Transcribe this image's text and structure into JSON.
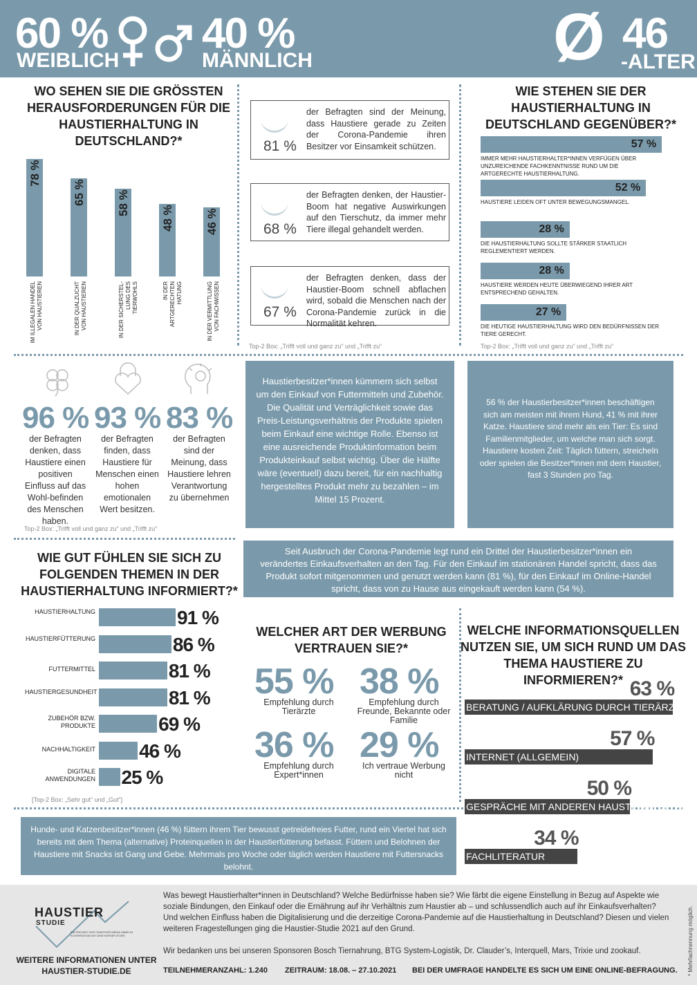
{
  "header": {
    "female_pct": "60 %",
    "female_label": "WEIBLICH",
    "male_pct": "40 %",
    "male_label": "MÄNNLICH",
    "avg_symbol": "Ø",
    "avg_value": "46",
    "avg_label": "-ALTER"
  },
  "challenges": {
    "title": "WO SEHEN SIE DIE GRÖSSTEN HERAUSFORDERUNGEN FÜR DIE HAUSTIERHALTUNG IN DEUTSCHLAND?*"
  },
  "corona_stats": {
    "items": [
      {
        "pct": "81 %",
        "text": "der Befragten sind der Meinung, dass Haustiere gerade zu Zeiten der Corona-Pandemie ihren Besitzer vor Einsamkeit schützen."
      },
      {
        "pct": "68 %",
        "text": "der Befragten denken, der Haustier-Boom hat negative Auswirkungen auf den Tierschutz, da immer mehr Tiere illegal gehandelt werden."
      },
      {
        "pct": "67 %",
        "text": "der Befragten denken, dass der Haustier-Boom schnell abflachen wird, sobald die Menschen nach der Corona-Pandemie zurück in die Normalität kehren."
      }
    ],
    "note": "Top-2 Box: „Trifft voll und ganz zu“ und „Trifft zu“"
  },
  "attitude": {
    "title": "WIE STEHEN SIE DER HAUSTIERHALTUNG IN DEUTSCHLAND GEGENÜBER?*",
    "note": "Top-2 Box: „Trifft voll und ganz zu“ und „Trifft zu“"
  },
  "kpis": {
    "items": [
      {
        "pct": "96 %",
        "text": "der Befragten denken, dass Haustiere einen positiven Einfluss auf das Wohl-befinden des Menschen haben."
      },
      {
        "pct": "93 %",
        "text": "der Befragten finden, dass Haustiere für Menschen einen hohen emotionalen Wert besitzen."
      },
      {
        "pct": "83 %",
        "text": "der Befragten sind der Meinung, dass Haustiere lehren Verantwortung zu übernehmen"
      }
    ],
    "note": "Top-2 Box: „Trifft voll und ganz zu“ und „Trifft zu“"
  },
  "texts": {
    "purchase": "Haustierbesitzer*innen kümmern sich selbst um den Einkauf von Futtermitteln und Zubehör. Die Qualität und Verträglichkeit sowie das Preis-Leistungsverhältnis der Produkte spielen beim Einkauf eine wichtige Rolle. Ebenso ist eine ausreichende Produktinformation beim Produkteinkauf selbst wichtig. Über die Hälfte wäre (eventuell) dazu bereit, für ein nachhaltig hergestelltes Produkt mehr zu bezahlen – im Mittel 15 Prozent.",
    "pets": "56 % der Haustierbesitzer*innen beschäftigen sich am meisten mit ihrem Hund, 41 % mit ihrer Katze. Haustiere sind mehr als ein Tier: Es sind Familienmitglieder, um welche man sich sorgt. Haustiere kosten Zeit: Täglich füttern, streicheln oder spielen die Besitzer*innen mit dem Haustier, fast 3 Stunden pro Tag.",
    "corona_buy": "Seit Ausbruch der Corona-Pandemie legt rund ein Drittel der Haustierbesitzer*innen ein verändertes Einkaufsverhalten an den Tag. Für den Einkauf im stationären Handel spricht, dass das Produkt sofort mitgenommen und genutzt werden kann (81 %), für den Einkauf im Online-Handel spricht, dass von zu Hause aus eingekauft werden kann (54 %).",
    "feeding": "Hunde- und Katzenbesitzer*innen (46 %) füttern ihrem Tier bewusst getreidefreies Futter, rund ein Viertel hat sich bereits mit dem Thema (alternative) Proteinquellen in der Haustierfütterung befasst. Füttern und Belohnen der Haustiere mit Snacks ist Gang und Gebe. Mehrmals pro Woche oder täglich werden Haustiere mit Futtersnacks belohnt."
  },
  "informed": {
    "title": "WIE GUT FÜHLEN SIE SICH ZU FOLGENDEN THEMEN IN DER HAUSTIERHALTUNG INFORMIERT?*",
    "note": "[Top-2 Box: „Sehr gut“ und „Gut“]"
  },
  "advertising": {
    "title": "WELCHER ART DER WERBUNG VERTRAUEN SIE?*",
    "items": [
      {
        "pct": "55 %",
        "text": "Empfehlung durch Tierärzte"
      },
      {
        "pct": "38 %",
        "text": "Empfehlung durch Freunde, Bekannte oder Familie"
      },
      {
        "pct": "36 %",
        "text": "Empfehlung durch Expert*innen"
      },
      {
        "pct": "29 %",
        "text": "Ich vertraue Werbung nicht"
      }
    ]
  },
  "sources": {
    "title": "WELCHE INFORMATIONSQUELLEN NUTZEN SIE, UM SICH RUND UM DAS THEMA HAUSTIERE ZU INFORMIEREN?*"
  },
  "footer": {
    "logo_line1": "HAUSTIER",
    "logo_line2": "STUDIE",
    "logo_small": "EIN PROJEKT DER TAKEOVER MEDIA GMBH IN KOOPERATION MIT DEM HORSEFUTURE.",
    "more_info": "WEITERE INFORMATIONEN UNTER",
    "website": "HAUSTIER-STUDIE.DE",
    "about": "Was bewegt Haustierhalter*innen in Deutschland? Welche Bedürfnisse haben sie? Wie färbt die eigene Einstellung in Bezug auf Aspekte wie soziale Bindungen, den Einkauf oder die Ernährung auf ihr Verhältnis zum Haustier ab – und schlussendlich auch auf ihr Einkaufsverhalten? Und welchen Einfluss haben die Digitalisierung und die derzeitige Corona-Pandemie auf die Haustierhaltung in Deutschland? Diesen und vielen weiteren Fragestellungen ging die Haustier-Studie 2021 auf den Grund.",
    "sponsors": "Wir bedanken uns bei unseren Sponsoren Bosch Tiernahrung, BTG System-Logistik, Dr. Clauder’s, Interquell, Mars, Trixie und zookauf.",
    "participants": "TEILNEHMERANZAHL: 1.240",
    "period": "ZEITRAUM: 18.08. – 27.10.2021",
    "online": "BEI DER UMFRAGE HANDELTE ES SICH UM EINE ONLINE-BEFRAGUNG.",
    "multi": "* Mehrfachnennung möglich."
  },
  "chart_data": [
    {
      "type": "bar",
      "title": "WO SEHEN SIE DIE GRÖSSTEN HERAUSFORDERUNGEN FÜR DIE HAUSTIERHALTUNG IN DEUTSCHLAND?*",
      "categories": [
        "IM ILLEGALEN HANDEL VON HAUSTIEREN",
        "IN DER QUALZUCHT VON HAUSTIEREN",
        "IN DER SICHERSTEL-LUNG DES TIERWOHLS",
        "IN DER ARTGERECHTEN HATUNG",
        "IN DER VERMITTLUNG VON FACHWISSEN"
      ],
      "values": [
        78,
        65,
        58,
        48,
        46
      ],
      "labels": [
        "78 %",
        "65 %",
        "58 %",
        "48 %",
        "46 %"
      ],
      "ylim": [
        0,
        100
      ]
    },
    {
      "type": "bar",
      "title": "WIE STEHEN SIE DER HAUSTIERHALTUNG IN DEUTSCHLAND GEGENÜBER?*",
      "categories": [
        "IMMER MEHR HAUSTIERHALTER*INNEN VERFÜGEN ÜBER UNZUREICHENDE FACHKENNTNISSE RUND UM DIE ARTGERECHTE HAUSTIERHALTUNG.",
        "HAUSTIERE LEIDEN OFT UNTER BEWEGUNGSMANGEL.",
        "DIE HAUSTIERHALTUNG SOLLTE STÄRKER STAATLICH REGLEMENTIERT WERDEN.",
        "HAUSTIERE WERDEN HEUTE ÜBERWIEGEND IHRER ART ENTSPRECHEND GEHALTEN.",
        "DIE HEUTIGE HAUSTIERHALTUNG WIRD DEN BEDÜRFNISSEN DER TIERE GERECHT."
      ],
      "values": [
        57,
        52,
        28,
        28,
        27
      ],
      "labels": [
        "57 %",
        "52 %",
        "28 %",
        "28 %",
        "27 %"
      ]
    },
    {
      "type": "bar",
      "title": "WIE GUT FÜHLEN SIE SICH ZU FOLGENDEN THEMEN IN DER HAUSTIERHALTUNG INFORMIERT?*",
      "categories": [
        "HAUSTIERHALTUNG",
        "HAUSTIERFÜTTERUNG",
        "FUTTERMITTEL",
        "HAUSTIERGESUNDHEIT",
        "ZUBEHÖR BZW. PRODUKTE",
        "NACHHALTIGKEIT",
        "DIGITALE ANWENDUNGEN"
      ],
      "values": [
        91,
        86,
        81,
        81,
        69,
        46,
        25
      ],
      "labels": [
        "91 %",
        "86 %",
        "81 %",
        "81 %",
        "69 %",
        "46 %",
        "25 %"
      ]
    },
    {
      "type": "bar",
      "title": "WELCHE INFORMATIONSQUELLEN NUTZEN SIE, UM SICH RUND UM DAS THEMA HAUSTIERE ZU INFORMIEREN?*",
      "categories": [
        "BERATUNG / AUFKLÄRUNG DURCH TIERÄRZTE",
        "INTERNET (ALLGEMEIN)",
        "GESPRÄCHE MIT ANDEREN HAUSTIERBESITZERN",
        "FACHLITERATUR"
      ],
      "values": [
        63,
        57,
        50,
        34
      ],
      "labels": [
        "63 %",
        "57 %",
        "50 %",
        "34 %"
      ]
    }
  ]
}
